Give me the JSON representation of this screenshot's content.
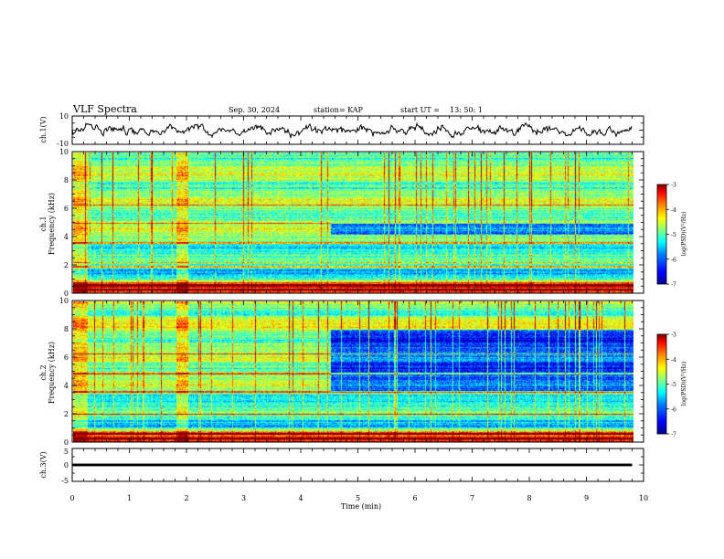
{
  "header": {
    "title": "VLF Spectra",
    "date": "Sep. 30, 2024",
    "station": "station= KAP",
    "start_label": "start  UT  =",
    "start_time": "13: 50: 1"
  },
  "colors": {
    "colormap": [
      "#00008f",
      "#0000ff",
      "#0080ff",
      "#00ffff",
      "#80ff80",
      "#ffff00",
      "#ff8000",
      "#ff0000",
      "#800000"
    ]
  },
  "chart_data": [
    {
      "type": "line",
      "panel": "waveform-ch1",
      "ylabel": "ch.1(V)",
      "ylim": [
        -10,
        10
      ],
      "y_ticks": [
        "10",
        "-10"
      ],
      "x_range": [
        0,
        10
      ],
      "series": [
        {
          "x_range": [
            0,
            9.8
          ],
          "mean": 0,
          "approx_amplitude": 4
        }
      ]
    },
    {
      "type": "heatmap",
      "panel": "spectrogram-ch1",
      "ylabel": "ch.1\nFrequency (kHz)",
      "ylim": [
        0,
        10
      ],
      "y_ticks": [
        "0",
        "2",
        "4",
        "6",
        "8",
        "10"
      ],
      "x_range": [
        0,
        9.8
      ],
      "colorbar": {
        "label": "log(PSD)(V²/Hz)",
        "range": [
          -7,
          -3
        ],
        "ticks": [
          "-3",
          "-4",
          "-5",
          "-6",
          "-7"
        ]
      },
      "persistent_lines_khz": [
        0.3,
        0.6,
        1.9,
        2.2,
        3.6,
        5.0,
        6.3
      ],
      "low_power_band_khz": [
        4.2,
        5.0
      ],
      "low_power_band_from_min": 4.5
    },
    {
      "type": "heatmap",
      "panel": "spectrogram-ch2",
      "ylabel": "ch.2\nFrequency (kHz)",
      "ylim": [
        0,
        10
      ],
      "y_ticks": [
        "0",
        "2",
        "4",
        "6",
        "8",
        "10"
      ],
      "x_range": [
        0,
        9.8
      ],
      "colorbar": {
        "label": "log(PSD)(V²/Hz)",
        "range": [
          -7,
          -3
        ],
        "ticks": [
          "-3",
          "-4",
          "-5",
          "-6",
          "-7"
        ]
      },
      "persistent_lines_khz": [
        0.3,
        0.6,
        2.0,
        3.6,
        4.9,
        6.3
      ],
      "low_power_band_khz": [
        3.6,
        8.0
      ],
      "low_power_band_from_min": 4.5
    },
    {
      "type": "line",
      "panel": "waveform-ch3",
      "ylabel": "ch.3(V)",
      "ylim": [
        -5,
        5
      ],
      "y_ticks": [
        "5",
        "0",
        "-5"
      ],
      "x_range": [
        0,
        10
      ],
      "series": [
        {
          "x_range": [
            0,
            9.8
          ],
          "level": 0,
          "approx_amplitude": 0.4
        }
      ]
    }
  ],
  "x_axis": {
    "label": "Time  (min)",
    "ticks": [
      "0",
      "1",
      "2",
      "3",
      "4",
      "5",
      "6",
      "7",
      "8",
      "9",
      "10"
    ],
    "range": [
      0,
      10
    ]
  }
}
